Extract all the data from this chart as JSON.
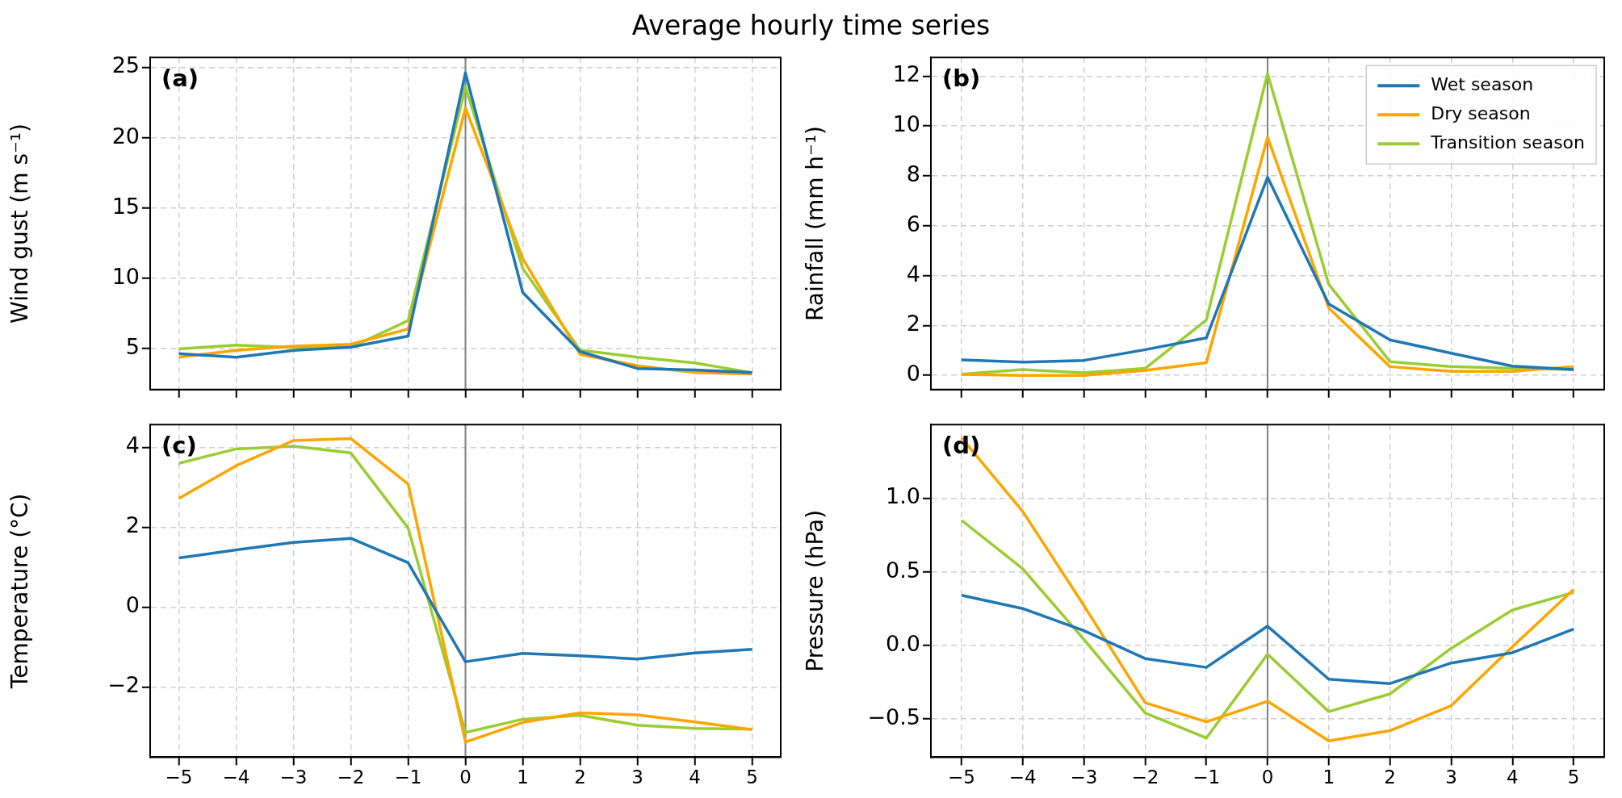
{
  "chart_data": [
    {
      "type": "line",
      "title": "Average hourly time series",
      "ylabel": "Wind gust (m s⁻¹)",
      "annotations": [
        "(a)"
      ],
      "x": [
        -5,
        -4,
        -3,
        -2,
        -1,
        0,
        1,
        2,
        3,
        4,
        5
      ],
      "series": [
        {
          "color": "#1f77b4",
          "values": [
            4.65,
            4.4,
            4.88,
            5.11,
            5.9,
            24.6,
            9.0,
            4.8,
            3.6,
            3.5,
            3.3
          ]
        },
        {
          "color": "#ffa500",
          "values": [
            4.4,
            4.89,
            5.18,
            5.32,
            6.4,
            22.1,
            11.4,
            4.6,
            3.8,
            3.3,
            3.2
          ]
        },
        {
          "color": "#9acd32",
          "values": [
            4.99,
            5.26,
            5.1,
            5.1,
            7.0,
            23.6,
            10.7,
            4.9,
            4.4,
            4.0,
            3.3
          ]
        }
      ],
      "xlim": [
        -5.5,
        5.5
      ],
      "xticks": [
        -5,
        -4,
        -3,
        -2,
        -1,
        0,
        1,
        2,
        3,
        4,
        5
      ],
      "ylim": [
        2.1,
        25.7
      ],
      "yticks": [
        5,
        10,
        15,
        20,
        25
      ],
      "grid": true,
      "legend": false,
      "tick_labels": "y",
      "ref_lines": [
        {
          "axis": "x",
          "value": 0,
          "color": "#808080"
        }
      ]
    },
    {
      "type": "line",
      "ylabel": "Rainfall (mm h⁻¹)",
      "annotations": [
        "(b)"
      ],
      "x": [
        -5,
        -4,
        -3,
        -2,
        -1,
        0,
        1,
        2,
        3,
        4,
        5
      ],
      "series": [
        {
          "name": "Wet season",
          "color": "#1f77b4",
          "values": [
            0.62,
            0.53,
            0.6,
            1.03,
            1.5,
            7.95,
            2.86,
            1.42,
            0.89,
            0.37,
            0.23
          ]
        },
        {
          "name": "Dry season",
          "color": "#ffa500",
          "values": [
            0.04,
            0.0,
            0.0,
            0.2,
            0.51,
            9.55,
            2.7,
            0.35,
            0.16,
            0.16,
            0.35
          ]
        },
        {
          "name": "Transition season",
          "color": "#9acd32",
          "values": [
            0.05,
            0.23,
            0.1,
            0.28,
            2.22,
            12.1,
            3.65,
            0.55,
            0.35,
            0.28,
            0.23
          ]
        }
      ],
      "xlim": [
        -5.5,
        5.5
      ],
      "xticks": [
        -5,
        -4,
        -3,
        -2,
        -1,
        0,
        1,
        2,
        3,
        4,
        5
      ],
      "ylim": [
        -0.57,
        12.75
      ],
      "yticks": [
        0,
        2,
        4,
        6,
        8,
        10,
        12
      ],
      "grid": true,
      "legend": "top right",
      "tick_labels": "y",
      "ref_lines": [
        {
          "axis": "x",
          "value": 0,
          "color": "#808080"
        }
      ]
    },
    {
      "type": "line",
      "ylabel": "Temperature (°C)",
      "annotations": [
        "(c)"
      ],
      "x": [
        -5,
        -4,
        -3,
        -2,
        -1,
        0,
        1,
        2,
        3,
        4,
        5
      ],
      "series": [
        {
          "color": "#1f77b4",
          "values": [
            1.23,
            1.43,
            1.62,
            1.72,
            1.11,
            -1.37,
            -1.16,
            -1.22,
            -1.3,
            -1.15,
            -1.06
          ]
        },
        {
          "color": "#ffa500",
          "values": [
            2.72,
            3.54,
            4.17,
            4.22,
            3.08,
            -3.38,
            -2.89,
            -2.65,
            -2.7,
            -2.88,
            -3.07
          ]
        },
        {
          "color": "#9acd32",
          "values": [
            3.6,
            3.96,
            4.03,
            3.86,
            1.98,
            -3.14,
            -2.81,
            -2.71,
            -2.96,
            -3.04,
            -3.06
          ]
        }
      ],
      "xlim": [
        -5.5,
        5.5
      ],
      "xticks": [
        {
          "value": -5,
          "label": "−5"
        },
        {
          "value": -4,
          "label": "−4"
        },
        {
          "value": -3,
          "label": "−3"
        },
        {
          "value": -2,
          "label": "−2"
        },
        {
          "value": -1,
          "label": "−1"
        },
        0,
        1,
        2,
        3,
        4,
        5
      ],
      "ylim": [
        -3.76,
        4.57
      ],
      "yticks": [
        {
          "value": -2,
          "label": "−2"
        },
        0,
        2,
        4
      ],
      "grid": true,
      "legend": false,
      "ref_lines": [
        {
          "axis": "x",
          "value": 0,
          "color": "#808080"
        }
      ]
    },
    {
      "type": "line",
      "ylabel": "Pressure (hPa)",
      "annotations": [
        "(d)"
      ],
      "x": [
        -5,
        -4,
        -3,
        -2,
        -1,
        0,
        1,
        2,
        3,
        4,
        5
      ],
      "series": [
        {
          "color": "#1f77b4",
          "values": [
            0.34,
            0.25,
            0.1,
            -0.09,
            -0.15,
            0.13,
            -0.23,
            -0.26,
            -0.12,
            -0.05,
            0.11
          ]
        },
        {
          "color": "#ffa500",
          "values": [
            1.41,
            0.91,
            0.27,
            -0.39,
            -0.52,
            -0.38,
            -0.65,
            -0.58,
            -0.41,
            -0.01,
            0.38
          ]
        },
        {
          "color": "#9acd32",
          "values": [
            0.85,
            0.52,
            0.04,
            -0.46,
            -0.63,
            -0.06,
            -0.45,
            -0.33,
            -0.02,
            0.24,
            0.36
          ]
        }
      ],
      "xlim": [
        -5.5,
        5.5
      ],
      "xticks": [
        {
          "value": -5,
          "label": "−5"
        },
        {
          "value": -4,
          "label": "−4"
        },
        {
          "value": -3,
          "label": "−3"
        },
        {
          "value": -2,
          "label": "−2"
        },
        {
          "value": -1,
          "label": "−1"
        },
        0,
        1,
        2,
        3,
        4,
        5
      ],
      "ylim": [
        -0.76,
        1.5
      ],
      "yticks": [
        {
          "value": -0.5,
          "label": "−0.5"
        },
        {
          "value": 0,
          "label": "0.0"
        },
        {
          "value": 0.5,
          "label": "0.5"
        },
        {
          "value": 1,
          "label": "1.0"
        }
      ],
      "grid": true,
      "legend": false,
      "ref_lines": [
        {
          "axis": "x",
          "value": 0,
          "color": "#808080"
        }
      ]
    }
  ]
}
